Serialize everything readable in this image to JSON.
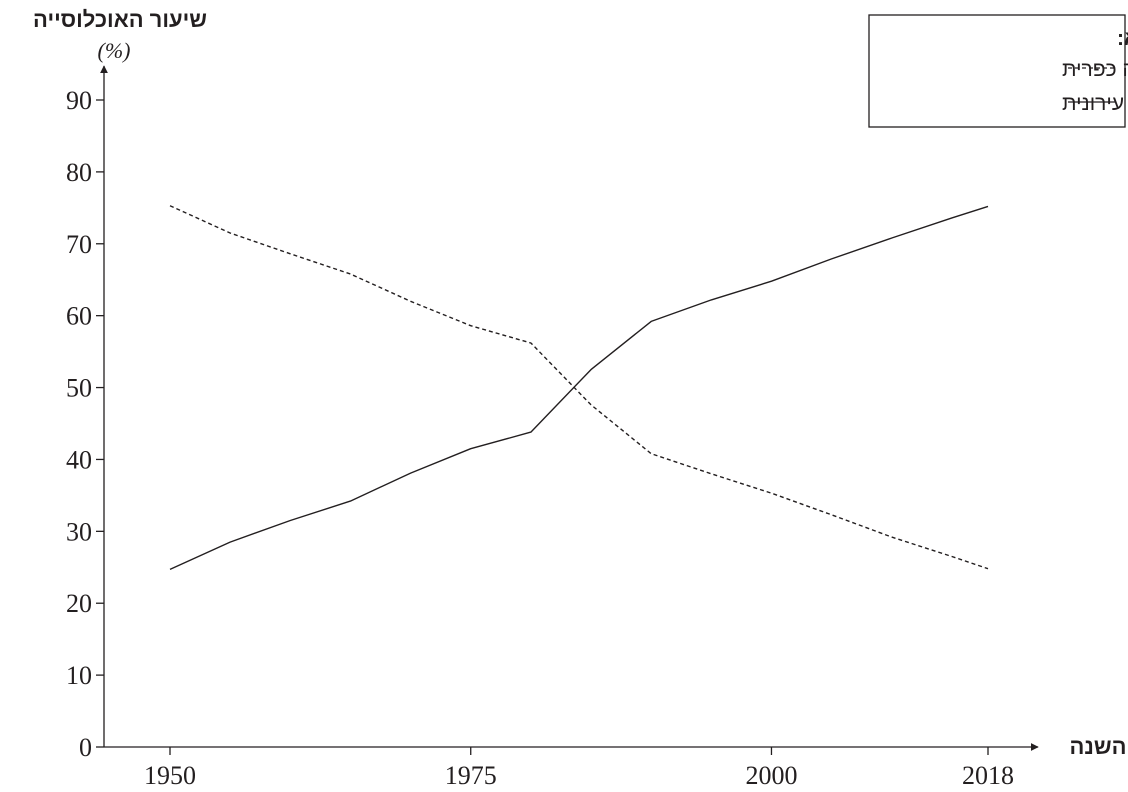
{
  "chart_data": {
    "type": "line",
    "ylabel": "שיעור האוכלוסייה",
    "yunit": "(%)",
    "xlabel": "השנה",
    "xlim": [
      1945,
      2024
    ],
    "ylim": [
      0,
      90
    ],
    "x_ticks": [
      1950,
      1975,
      2000,
      2018
    ],
    "y_ticks": [
      0,
      10,
      20,
      30,
      40,
      50,
      60,
      70,
      80,
      90
    ],
    "grid": false,
    "legend": {
      "title": "מקרא:",
      "placement": "top-right"
    },
    "series": [
      {
        "name": "אוכלוסייה כפרית",
        "style": "dashed",
        "x": [
          1950,
          1955,
          1960,
          1965,
          1970,
          1975,
          1980,
          1985,
          1990,
          1995,
          2000,
          2005,
          2010,
          2015,
          2018
        ],
        "values": [
          75.3,
          71.5,
          68.6,
          65.8,
          62,
          58.6,
          56.2,
          47.6,
          40.8,
          38,
          35.3,
          32.3,
          29.2,
          26.5,
          24.8
        ]
      },
      {
        "name": "אוכלוסייה עירונית",
        "style": "solid",
        "x": [
          1950,
          1955,
          1960,
          1965,
          1970,
          1975,
          1980,
          1985,
          1990,
          1995,
          2000,
          2005,
          2010,
          2015,
          2018
        ],
        "values": [
          24.7,
          28.5,
          31.5,
          34.2,
          38.1,
          41.5,
          43.8,
          52.5,
          59.2,
          62.2,
          64.8,
          67.9,
          70.8,
          73.6,
          75.2
        ]
      }
    ]
  }
}
